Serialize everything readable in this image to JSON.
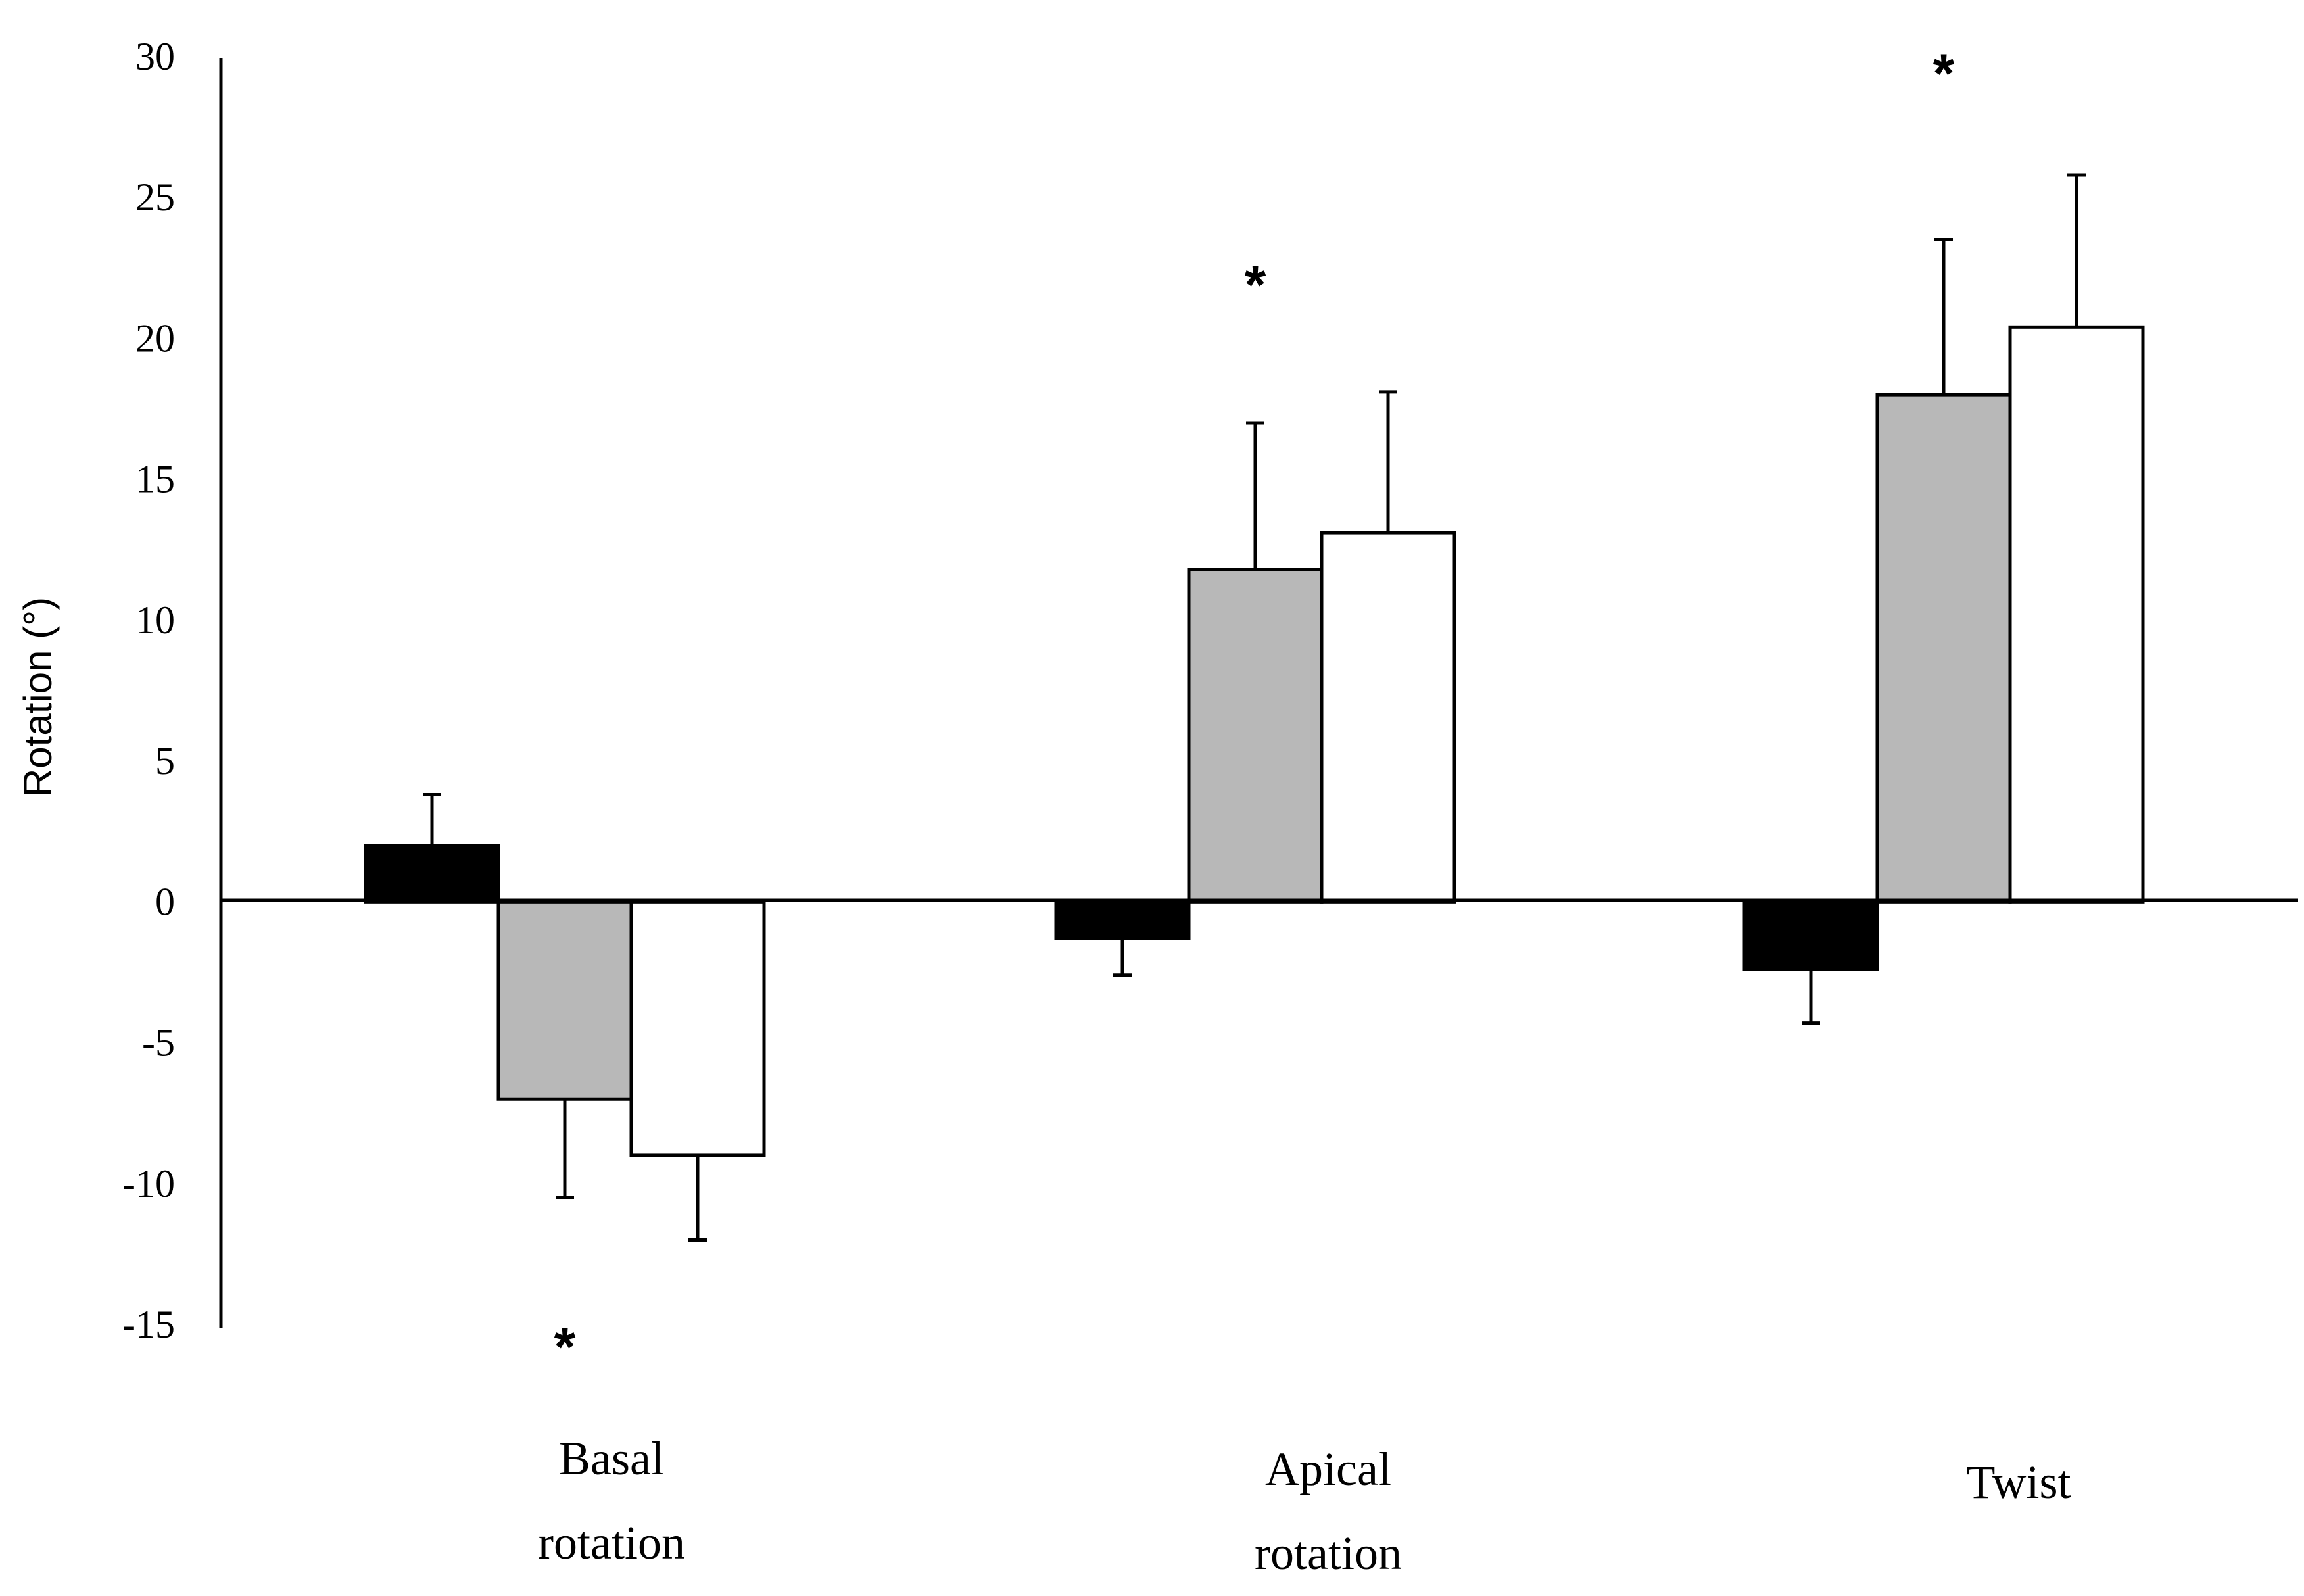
{
  "chart_data": {
    "type": "bar",
    "ylabel": "Rotation (°)",
    "ylim": [
      -15,
      30
    ],
    "yticks": [
      30,
      25,
      20,
      15,
      10,
      5,
      0,
      -5,
      -10,
      -15
    ],
    "grid": false,
    "legend": "none",
    "categories": [
      {
        "lines": [
          "Basal",
          "rotation"
        ]
      },
      {
        "lines": [
          "Apical",
          "rotation"
        ]
      },
      {
        "lines": [
          "Twist"
        ]
      }
    ],
    "series": [
      {
        "fill": "#000000",
        "values": [
          2.0,
          -1.3,
          -2.4
        ],
        "errors": [
          1.8,
          1.3,
          1.9
        ]
      },
      {
        "fill": "#b8b8b8",
        "values": [
          -7.0,
          11.8,
          18.0
        ],
        "errors": [
          3.5,
          5.2,
          5.5
        ]
      },
      {
        "fill": "#ffffff",
        "values": [
          -9.0,
          13.1,
          20.4
        ],
        "errors": [
          3.0,
          5.0,
          5.4
        ]
      }
    ],
    "annotations": [
      {
        "text": "*",
        "category": 0,
        "y": -15.4
      },
      {
        "text": "*",
        "category": 1,
        "y": 22.3
      },
      {
        "text": "*",
        "category": 2,
        "y": 29.8
      }
    ]
  }
}
